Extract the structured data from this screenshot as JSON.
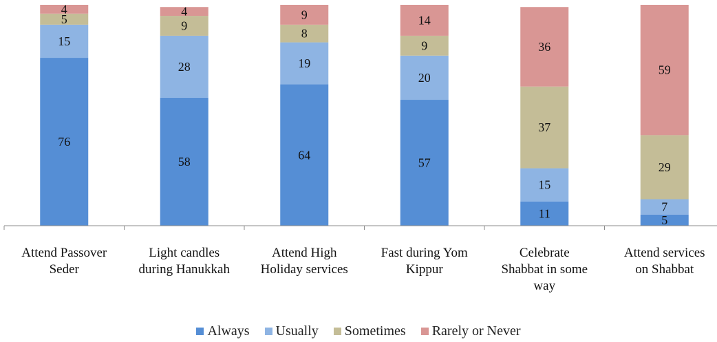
{
  "chart_data": {
    "type": "bar",
    "stacked": true,
    "categories": [
      "Attend Passover Seder",
      "Light candles during Hanukkah",
      "Attend High Holiday services",
      "Fast during Yom Kippur",
      "Celebrate Shabbat in some way",
      "Attend services on Shabbat"
    ],
    "series": [
      {
        "name": "Always",
        "color": "#558ED5",
        "values": [
          76,
          58,
          64,
          57,
          11,
          5
        ]
      },
      {
        "name": "Usually",
        "color": "#8EB4E3",
        "values": [
          15,
          28,
          19,
          20,
          15,
          7
        ]
      },
      {
        "name": "Sometimes",
        "color": "#C4BD97",
        "values": [
          5,
          9,
          8,
          9,
          37,
          29
        ]
      },
      {
        "name": "Rarely or Never",
        "color": "#D99694",
        "values": [
          4,
          4,
          9,
          14,
          36,
          59
        ]
      }
    ],
    "ylim": [
      0,
      100
    ],
    "grid": false,
    "legend_position": "bottom"
  }
}
